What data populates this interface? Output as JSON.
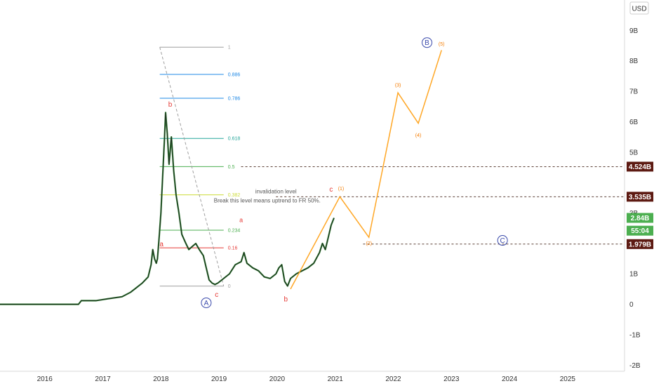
{
  "chart_data": {
    "type": "line",
    "title": "",
    "currency_label": "USD",
    "y_ticks": [
      "9B",
      "8B",
      "7B",
      "6B",
      "5B",
      "3B",
      "1B",
      "0",
      "-1B",
      "-2B"
    ],
    "x_ticks": [
      "2016",
      "2017",
      "2018",
      "2019",
      "2020",
      "2021",
      "2022",
      "2023",
      "2024",
      "2025"
    ],
    "ylim": [
      -2.2,
      10
    ],
    "xlim": [
      2015.25,
      2026.0
    ],
    "price_series": [
      [
        2015.25,
        0.0
      ],
      [
        2016.6,
        0.0
      ],
      [
        2016.65,
        0.12
      ],
      [
        2016.9,
        0.12
      ],
      [
        2017.1,
        0.18
      ],
      [
        2017.35,
        0.25
      ],
      [
        2017.5,
        0.4
      ],
      [
        2017.6,
        0.55
      ],
      [
        2017.7,
        0.7
      ],
      [
        2017.8,
        0.9
      ],
      [
        2017.85,
        1.3
      ],
      [
        2017.88,
        1.8
      ],
      [
        2017.91,
        1.5
      ],
      [
        2017.94,
        1.35
      ],
      [
        2017.96,
        1.5
      ],
      [
        2017.99,
        2.2
      ],
      [
        2018.02,
        3.0
      ],
      [
        2018.05,
        4.2
      ],
      [
        2018.08,
        5.4
      ],
      [
        2018.1,
        6.3
      ],
      [
        2018.13,
        5.6
      ],
      [
        2018.16,
        4.6
      ],
      [
        2018.2,
        5.5
      ],
      [
        2018.24,
        4.4
      ],
      [
        2018.28,
        3.6
      ],
      [
        2018.33,
        3.0
      ],
      [
        2018.38,
        2.3
      ],
      [
        2018.45,
        2.0
      ],
      [
        2018.5,
        1.8
      ],
      [
        2018.56,
        1.9
      ],
      [
        2018.62,
        2.0
      ],
      [
        2018.68,
        1.8
      ],
      [
        2018.75,
        1.6
      ],
      [
        2018.8,
        1.2
      ],
      [
        2018.85,
        0.8
      ],
      [
        2018.9,
        0.7
      ],
      [
        2018.95,
        0.65
      ],
      [
        2019.0,
        0.7
      ],
      [
        2019.1,
        0.85
      ],
      [
        2019.2,
        1.0
      ],
      [
        2019.3,
        1.3
      ],
      [
        2019.4,
        1.4
      ],
      [
        2019.45,
        1.7
      ],
      [
        2019.5,
        1.35
      ],
      [
        2019.6,
        1.2
      ],
      [
        2019.7,
        1.1
      ],
      [
        2019.8,
        0.9
      ],
      [
        2019.9,
        0.85
      ],
      [
        2020.0,
        1.0
      ],
      [
        2020.05,
        1.2
      ],
      [
        2020.1,
        1.3
      ],
      [
        2020.15,
        0.75
      ],
      [
        2020.2,
        0.6
      ],
      [
        2020.25,
        0.85
      ],
      [
        2020.35,
        1.0
      ],
      [
        2020.45,
        1.1
      ],
      [
        2020.55,
        1.2
      ],
      [
        2020.65,
        1.35
      ],
      [
        2020.75,
        1.7
      ],
      [
        2020.8,
        2.0
      ],
      [
        2020.85,
        1.8
      ],
      [
        2020.9,
        2.2
      ],
      [
        2020.95,
        2.6
      ],
      [
        2021.0,
        2.84
      ]
    ],
    "projection": {
      "name": "",
      "points": [
        [
          2020.25,
          0.5
        ],
        [
          2021.1,
          3.535
        ],
        [
          2021.6,
          2.2
        ],
        [
          2022.1,
          6.95
        ],
        [
          2022.45,
          5.95
        ],
        [
          2022.85,
          8.35
        ]
      ]
    },
    "fib_retracement": {
      "x_start": 2018.0,
      "x_end": 2019.1,
      "low": 0.6,
      "high": 8.45,
      "levels": [
        {
          "label": "1",
          "ratio": 1.0,
          "color": "#9e9e9e"
        },
        {
          "label": "0.886",
          "ratio": 0.886,
          "color": "#1e88e5"
        },
        {
          "label": "0.786",
          "ratio": 0.786,
          "color": "#1e88e5"
        },
        {
          "label": "0.618",
          "ratio": 0.618,
          "color": "#26a69a"
        },
        {
          "label": "0.5",
          "ratio": 0.5,
          "color": "#4caf50"
        },
        {
          "label": "0.382",
          "ratio": 0.382,
          "color": "#cddc39"
        },
        {
          "label": "0.234",
          "ratio": 0.234,
          "color": "#4caf50"
        },
        {
          "label": "0.16",
          "ratio": 0.16,
          "color": "#e53935"
        },
        {
          "label": "0",
          "ratio": 0.0,
          "color": "#9e9e9e"
        }
      ]
    },
    "horizontal_levels": [
      {
        "value": 4.524,
        "label": "4.524B",
        "x_from": 2019.4,
        "bg": "#5d1a12"
      },
      {
        "value": 3.535,
        "label": "3.535B",
        "x_from": 2020.0,
        "bg": "#5d1a12"
      },
      {
        "value": 1.979,
        "label": "1.979B",
        "x_from": 2021.5,
        "bg": "#5d1a12"
      }
    ],
    "price_badges": [
      {
        "value": 2.84,
        "label": "2.84B",
        "bg": "#4caf50"
      },
      {
        "value": 2.42,
        "label": "55:04",
        "bg": "#4caf50"
      }
    ],
    "wave_labels": [
      {
        "text": "b",
        "x": 2018.18,
        "y": 6.5,
        "color": "#e53935",
        "size": 10
      },
      {
        "text": "a",
        "x": 2018.03,
        "y": 1.9,
        "color": "#e53935",
        "size": 10
      },
      {
        "text": "c",
        "x": 2018.98,
        "y": 0.25,
        "color": "#e53935",
        "size": 10
      },
      {
        "text": "a",
        "x": 2019.4,
        "y": 2.7,
        "color": "#e53935",
        "size": 9
      },
      {
        "text": "b",
        "x": 2020.17,
        "y": 0.1,
        "color": "#e53935",
        "size": 10
      },
      {
        "text": "c",
        "x": 2020.95,
        "y": 3.7,
        "color": "#e53935",
        "size": 10
      },
      {
        "text": "(1)",
        "x": 2021.12,
        "y": 3.75,
        "color": "#f57c00",
        "size": 7
      },
      {
        "text": "(2)",
        "x": 2021.6,
        "y": 1.95,
        "color": "#f57c00",
        "size": 7
      },
      {
        "text": "(3)",
        "x": 2022.1,
        "y": 7.15,
        "color": "#f57c00",
        "size": 7
      },
      {
        "text": "(4)",
        "x": 2022.45,
        "y": 5.5,
        "color": "#f57c00",
        "size": 7
      },
      {
        "text": "(5)",
        "x": 2022.85,
        "y": 8.5,
        "color": "#f57c00",
        "size": 7
      }
    ],
    "circle_labels": [
      {
        "text": "A",
        "x": 2018.8,
        "y": 0.05
      },
      {
        "text": "B",
        "x": 2022.6,
        "y": 8.6
      },
      {
        "text": "C",
        "x": 2023.9,
        "y": 2.1
      }
    ],
    "annotations": [
      {
        "text": "invalidation level",
        "x": 2020.0,
        "y": 3.65,
        "size": 8
      },
      {
        "text": "Break this level means uptrend to FR 50%.",
        "x": 2019.85,
        "y": 3.35,
        "size": 8
      }
    ]
  }
}
